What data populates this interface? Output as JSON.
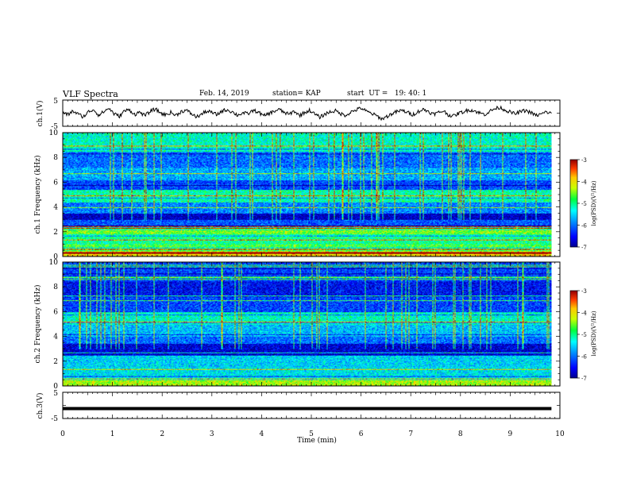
{
  "header": {
    "title": "VLF Spectra",
    "date": "Feb. 14, 2019",
    "station": "station= KAP",
    "start": "start  UT =   19: 40: 1"
  },
  "chart_data": [
    {
      "type": "line",
      "panel": "ch1-waveform",
      "ylabel": "ch.1(V)",
      "ylim": [
        -5,
        5
      ],
      "yticks": [
        "5",
        "-5"
      ],
      "xlim": [
        0,
        10
      ],
      "x_extent": [
        0,
        9.83
      ],
      "trace_color": "#000000",
      "series": [
        {
          "values_description": "",
          "y": [
            0.2,
            -0.6,
            0.8,
            -0.4,
            -1.4,
            0.5,
            1.4,
            -0.8,
            0.6,
            1.9,
            -0.3,
            -1.2,
            0.9,
            1.2,
            -0.5,
            0.4,
            -1.0,
            0.7,
            1.6,
            0.1,
            -0.7,
            0.3,
            -0.9,
            0.6,
            1.1,
            -0.2,
            -1.5,
            -0.4,
            0.8,
            0.2,
            -0.6,
            0.9,
            1.3,
            0.4,
            -0.8,
            0.1,
            -0.3,
            1.0,
            0.5,
            -1.1,
            -0.2,
            0.6,
            1.5,
            0.3,
            -0.5,
            0.8,
            -0.9,
            0.2,
            1.1,
            -0.4,
            -1.6,
            -0.3,
            0.5,
            0.9,
            -0.2,
            -0.8,
            0.4,
            1.2,
            2.0,
            0.7,
            -0.1,
            -1.0,
            -2.2,
            -1.3,
            -0.2,
            0.6,
            1.0,
            0.3,
            -0.6,
            0.5,
            1.4,
            0.8,
            -0.4,
            0.2,
            0.9,
            -0.7,
            -1.1,
            0.0,
            0.6,
            1.3,
            0.9,
            0.1,
            -0.5,
            0.7,
            1.7,
            2.2,
            1.2,
            0.4,
            -0.3,
            0.6,
            1.0,
            0.2,
            -0.9,
            -0.4,
            0.5,
            -0.2
          ]
        }
      ]
    },
    {
      "type": "heatmap",
      "panel": "ch1-spectrogram",
      "ylabel": "ch.1\nFrequency (kHz)",
      "xlim": [
        0,
        10
      ],
      "ylim": [
        0,
        10
      ],
      "x_extent": [
        0,
        9.83
      ],
      "yticks": [
        "0",
        "2",
        "4",
        "6",
        "8",
        "10"
      ],
      "colorbar": {
        "label": "log(PSD)(V²/Hz)",
        "range": [
          -7,
          -3
        ],
        "ticks": [
          "-3",
          "-4",
          "-5",
          "-6",
          "-7"
        ]
      },
      "bands": [
        {
          "f": [
            0.0,
            0.4
          ],
          "level": -3.9
        },
        {
          "f": [
            0.4,
            1.0
          ],
          "level": -4.7
        },
        {
          "f": [
            1.0,
            1.8
          ],
          "level": -5.0
        },
        {
          "f": [
            1.8,
            2.5
          ],
          "level": -4.5
        },
        {
          "f": [
            2.5,
            3.0
          ],
          "level": -6.1
        },
        {
          "f": [
            3.0,
            3.5
          ],
          "level": -6.8
        },
        {
          "f": [
            3.5,
            4.4
          ],
          "level": -5.9
        },
        {
          "f": [
            4.4,
            5.4
          ],
          "level": -5.1
        },
        {
          "f": [
            5.4,
            6.2
          ],
          "level": -6.2
        },
        {
          "f": [
            6.2,
            7.2
          ],
          "level": -5.7
        },
        {
          "f": [
            7.2,
            8.5
          ],
          "level": -6.0
        },
        {
          "f": [
            8.5,
            10.0
          ],
          "level": -5.2
        }
      ]
    },
    {
      "type": "heatmap",
      "panel": "ch2-spectrogram",
      "ylabel": "ch.2\nFrequency (kHz)",
      "xlim": [
        0,
        10
      ],
      "ylim": [
        0,
        10
      ],
      "x_extent": [
        0,
        9.83
      ],
      "yticks": [
        "0",
        "2",
        "4",
        "6",
        "8",
        "10"
      ],
      "colorbar": {
        "label": "log(PSD)(V²/Hz)",
        "range": [
          -7,
          -3
        ],
        "ticks": [
          "-3",
          "-4",
          "-5",
          "-6",
          "-7"
        ]
      },
      "bands": [
        {
          "f": [
            0.0,
            0.5
          ],
          "level": -4.3
        },
        {
          "f": [
            0.5,
            1.5
          ],
          "level": -5.4
        },
        {
          "f": [
            1.5,
            2.5
          ],
          "level": -5.5
        },
        {
          "f": [
            2.5,
            3.4
          ],
          "level": -6.7
        },
        {
          "f": [
            3.4,
            4.0
          ],
          "level": -6.0
        },
        {
          "f": [
            4.0,
            5.0
          ],
          "level": -5.6
        },
        {
          "f": [
            5.0,
            6.0
          ],
          "level": -5.2
        },
        {
          "f": [
            6.0,
            7.2
          ],
          "level": -6.2
        },
        {
          "f": [
            7.2,
            8.5
          ],
          "level": -6.5
        },
        {
          "f": [
            8.5,
            10.0
          ],
          "level": -6.2
        }
      ]
    },
    {
      "type": "line",
      "panel": "ch3-waveform",
      "ylabel": "ch.3(V)",
      "ylim": [
        -5,
        5
      ],
      "yticks": [
        "5",
        "-5"
      ],
      "xlim": [
        0,
        10
      ],
      "x_extent": [
        0,
        9.83
      ],
      "series": [
        {
          "y_constant": -1.2
        }
      ]
    }
  ],
  "xaxis": {
    "label": "Time (min)",
    "ticks": [
      "0",
      "1",
      "2",
      "3",
      "4",
      "5",
      "6",
      "7",
      "8",
      "9",
      "10"
    ]
  }
}
